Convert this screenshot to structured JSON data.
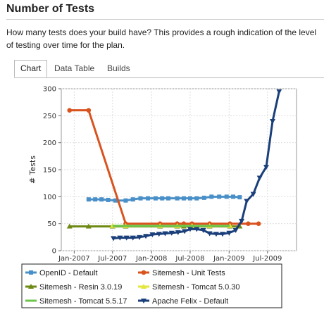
{
  "page": {
    "title": "Number of Tests",
    "description": "How many tests does your build have? This provides a rough indication of the level of testing over time for the plan."
  },
  "tabs": [
    {
      "label": "Chart",
      "active": true
    },
    {
      "label": "Data Table",
      "active": false
    },
    {
      "label": "Builds",
      "active": false
    }
  ],
  "chart_data": {
    "type": "line",
    "title": "",
    "xlabel": "",
    "ylabel": "# Tests",
    "xlim": [
      "2006-11-01",
      "2009-11-15"
    ],
    "ylim": [
      0,
      300
    ],
    "y_ticks": [
      0,
      50,
      100,
      150,
      200,
      250,
      300
    ],
    "x_ticks": [
      {
        "date": "2007-01-01",
        "label": "Jan-2007"
      },
      {
        "date": "2007-07-01",
        "label": "Jul-2007"
      },
      {
        "date": "2008-01-01",
        "label": "Jan-2008"
      },
      {
        "date": "2008-07-01",
        "label": "Jul-2008"
      },
      {
        "date": "2009-01-01",
        "label": "Jan-2009"
      },
      {
        "date": "2009-07-01",
        "label": "Jul-2009"
      }
    ],
    "grid": true,
    "legend_position": "bottom",
    "series": [
      {
        "name": "OpenID - Default",
        "color": "#4a90c8",
        "marker": "square",
        "points": [
          [
            "2007-03-10",
            95
          ],
          [
            "2007-04-10",
            95
          ],
          [
            "2007-05-10",
            95
          ],
          [
            "2007-06-10",
            94
          ],
          [
            "2007-07-15",
            93
          ],
          [
            "2007-09-01",
            93
          ],
          [
            "2007-10-05",
            95
          ],
          [
            "2007-11-10",
            97
          ],
          [
            "2007-12-15",
            97
          ],
          [
            "2008-01-20",
            97
          ],
          [
            "2008-02-20",
            97
          ],
          [
            "2008-03-20",
            97
          ],
          [
            "2008-05-01",
            97
          ],
          [
            "2008-06-01",
            97
          ],
          [
            "2008-07-01",
            97
          ],
          [
            "2008-08-01",
            97
          ],
          [
            "2008-09-05",
            98
          ],
          [
            "2008-10-10",
            100
          ],
          [
            "2008-11-15",
            100
          ],
          [
            "2008-12-20",
            100
          ],
          [
            "2009-01-20",
            100
          ],
          [
            "2009-02-20",
            99
          ]
        ]
      },
      {
        "name": "Sitemesh - Unit Tests",
        "color": "#d9531e",
        "marker": "circle",
        "points": [
          [
            "2006-12-10",
            260
          ],
          [
            "2007-03-10",
            260
          ],
          [
            "2007-09-01",
            50
          ],
          [
            "2008-02-10",
            50
          ],
          [
            "2008-05-01",
            50
          ],
          [
            "2008-06-01",
            50
          ],
          [
            "2008-07-10",
            50
          ],
          [
            "2008-10-01",
            50
          ],
          [
            "2009-01-05",
            50
          ],
          [
            "2009-04-01",
            50
          ],
          [
            "2009-05-20",
            50
          ]
        ]
      },
      {
        "name": "Sitemesh - Resin 3.0.19",
        "color": "#6e8a14",
        "marker": "triangle",
        "points": [
          [
            "2006-12-10",
            45
          ],
          [
            "2007-03-10",
            45
          ],
          [
            "2007-07-01",
            45
          ],
          [
            "2007-09-01",
            45
          ],
          [
            "2008-02-10",
            45
          ],
          [
            "2008-05-01",
            45
          ],
          [
            "2008-06-01",
            45
          ],
          [
            "2008-07-10",
            45
          ],
          [
            "2008-10-01",
            45
          ],
          [
            "2009-01-05",
            45
          ],
          [
            "2009-02-20",
            45
          ]
        ]
      },
      {
        "name": "Sitemesh - Tomcat 5.0.30",
        "color": "#e3e63c",
        "marker": "triangle",
        "points": [
          [
            "2007-07-01",
            46
          ],
          [
            "2007-09-01",
            46
          ],
          [
            "2008-02-10",
            46
          ],
          [
            "2008-05-01",
            46
          ],
          [
            "2008-07-10",
            46
          ],
          [
            "2008-10-01",
            46
          ],
          [
            "2009-01-05",
            46
          ]
        ]
      },
      {
        "name": "Sitemesh - Tomcat 5.5.17",
        "color": "#6cc44a",
        "marker": "line",
        "points": [
          [
            "2007-07-01",
            46
          ],
          [
            "2007-09-01",
            46
          ],
          [
            "2008-02-10",
            46
          ],
          [
            "2008-07-10",
            46
          ],
          [
            "2009-01-05",
            46
          ]
        ]
      },
      {
        "name": "Apache Felix - Default",
        "color": "#1a3f7a",
        "marker": "triangle-down",
        "points": [
          [
            "2007-07-05",
            23
          ],
          [
            "2007-08-05",
            24
          ],
          [
            "2007-09-05",
            24
          ],
          [
            "2007-10-05",
            24
          ],
          [
            "2007-11-05",
            25
          ],
          [
            "2007-12-05",
            27
          ],
          [
            "2008-01-05",
            30
          ],
          [
            "2008-02-05",
            31
          ],
          [
            "2008-03-05",
            32
          ],
          [
            "2008-04-05",
            33
          ],
          [
            "2008-05-05",
            34
          ],
          [
            "2008-06-05",
            36
          ],
          [
            "2008-07-01",
            40
          ],
          [
            "2008-08-01",
            40
          ],
          [
            "2008-09-01",
            38
          ],
          [
            "2008-10-01",
            32
          ],
          [
            "2008-11-01",
            31
          ],
          [
            "2008-12-01",
            31
          ],
          [
            "2009-01-01",
            33
          ],
          [
            "2009-02-01",
            38
          ],
          [
            "2009-03-01",
            55
          ],
          [
            "2009-03-25",
            92
          ],
          [
            "2009-04-25",
            105
          ],
          [
            "2009-05-25",
            135
          ],
          [
            "2009-06-25",
            155
          ],
          [
            "2009-07-25",
            240
          ],
          [
            "2009-08-25",
            295
          ]
        ]
      }
    ]
  }
}
